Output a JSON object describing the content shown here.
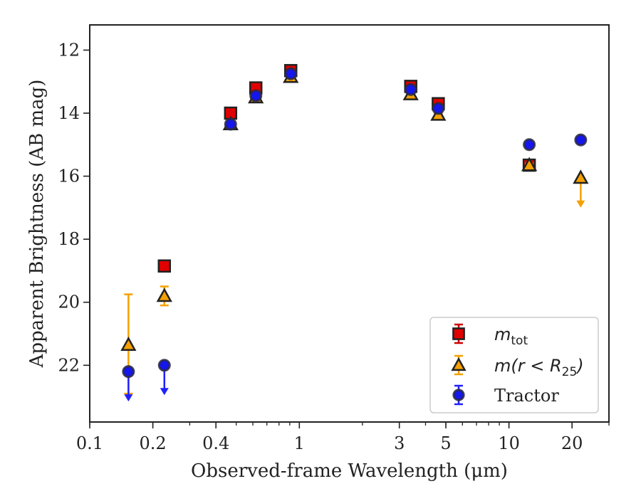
{
  "chart_data": {
    "type": "scatter",
    "xlabel": "Observed-frame Wavelength (μm)",
    "ylabel": "Apparent Brightness (AB mag)",
    "x_scale": "log",
    "xlim": [
      0.1,
      30
    ],
    "ylim": [
      23.8,
      11.2
    ],
    "y_inverted": true,
    "grid": false,
    "legend_position": "lower-right",
    "x_ticks": [
      {
        "value": 0.1,
        "label": "0.1"
      },
      {
        "value": 0.2,
        "label": "0.2"
      },
      {
        "value": 0.4,
        "label": "0.4"
      },
      {
        "value": 1,
        "label": "1"
      },
      {
        "value": 3,
        "label": "3"
      },
      {
        "value": 5,
        "label": "5"
      },
      {
        "value": 10,
        "label": "10"
      },
      {
        "value": 20,
        "label": "20"
      }
    ],
    "y_ticks": [
      {
        "value": 12,
        "label": "12"
      },
      {
        "value": 14,
        "label": "14"
      },
      {
        "value": 16,
        "label": "16"
      },
      {
        "value": 18,
        "label": "18"
      },
      {
        "value": 20,
        "label": "20"
      },
      {
        "value": 22,
        "label": "22"
      }
    ],
    "series": [
      {
        "name": "m_tot",
        "legend_main": "m",
        "legend_sub": "tot",
        "marker": "square",
        "color": "#e00000",
        "error_color": "#cc0000",
        "points": [
          {
            "x": 0.227,
            "y": 18.85,
            "err": 0.08
          },
          {
            "x": 0.47,
            "y": 14.0,
            "err": 0.06
          },
          {
            "x": 0.62,
            "y": 13.2,
            "err": 0.06
          },
          {
            "x": 0.91,
            "y": 12.65,
            "err": 0.06
          },
          {
            "x": 3.4,
            "y": 13.15,
            "err": 0.08
          },
          {
            "x": 4.6,
            "y": 13.7,
            "err": 0.1
          },
          {
            "x": 12.5,
            "y": 15.65,
            "err": 0.1
          }
        ]
      },
      {
        "name": "m(r<R25)",
        "legend_main": "m(r < R",
        "legend_sub": "25",
        "legend_tail": ")",
        "marker": "triangle",
        "color": "#f5a000",
        "error_color": "#f5a000",
        "points": [
          {
            "x": 0.153,
            "y": 21.35,
            "lo": 19.75,
            "hi": 22.9
          },
          {
            "x": 0.227,
            "y": 19.8,
            "err": 0.3
          },
          {
            "x": 0.47,
            "y": 14.35,
            "err": 0.05
          },
          {
            "x": 0.62,
            "y": 13.5,
            "err": 0.05
          },
          {
            "x": 0.91,
            "y": 12.85,
            "err": 0.05
          },
          {
            "x": 3.4,
            "y": 13.4,
            "err": 0.05
          },
          {
            "x": 4.6,
            "y": 14.05,
            "err": 0.05
          },
          {
            "x": 12.5,
            "y": 15.65,
            "err": 0.05
          },
          {
            "x": 22,
            "y": 16.05,
            "upper_limit": true
          }
        ]
      },
      {
        "name": "Tractor",
        "legend_main": "Tractor",
        "marker": "circle",
        "color": "#1515ee",
        "error_color": "#2020ff",
        "points": [
          {
            "x": 0.153,
            "y": 22.2,
            "upper_limit": true
          },
          {
            "x": 0.227,
            "y": 22.0,
            "upper_limit": true
          },
          {
            "x": 0.47,
            "y": 14.35,
            "err": 0.05
          },
          {
            "x": 0.62,
            "y": 13.45,
            "err": 0.05
          },
          {
            "x": 0.91,
            "y": 12.75,
            "err": 0.05
          },
          {
            "x": 3.4,
            "y": 13.25,
            "err": 0.05
          },
          {
            "x": 4.6,
            "y": 13.85,
            "err": 0.05
          },
          {
            "x": 12.5,
            "y": 15.0,
            "err": 0.05
          },
          {
            "x": 22,
            "y": 14.85,
            "err": 0.05
          }
        ]
      }
    ]
  }
}
